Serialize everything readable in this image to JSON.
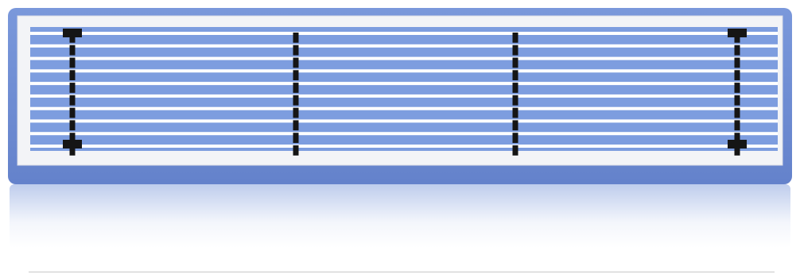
{
  "image": {
    "subject": "linear-bar-air-grille-icon",
    "colors": {
      "background": "#ffffff",
      "panel_blue": "#6f8fd6",
      "panel_blue_dark": "#5f7fc8",
      "frame_white": "#f3f4f7",
      "frame_edge": "#d9dde6",
      "slat": "#ffffff",
      "slot_blue": "#7d9ddf",
      "clip": "#151515",
      "divider": "#c8c8c8"
    },
    "slat_count": 10
  }
}
